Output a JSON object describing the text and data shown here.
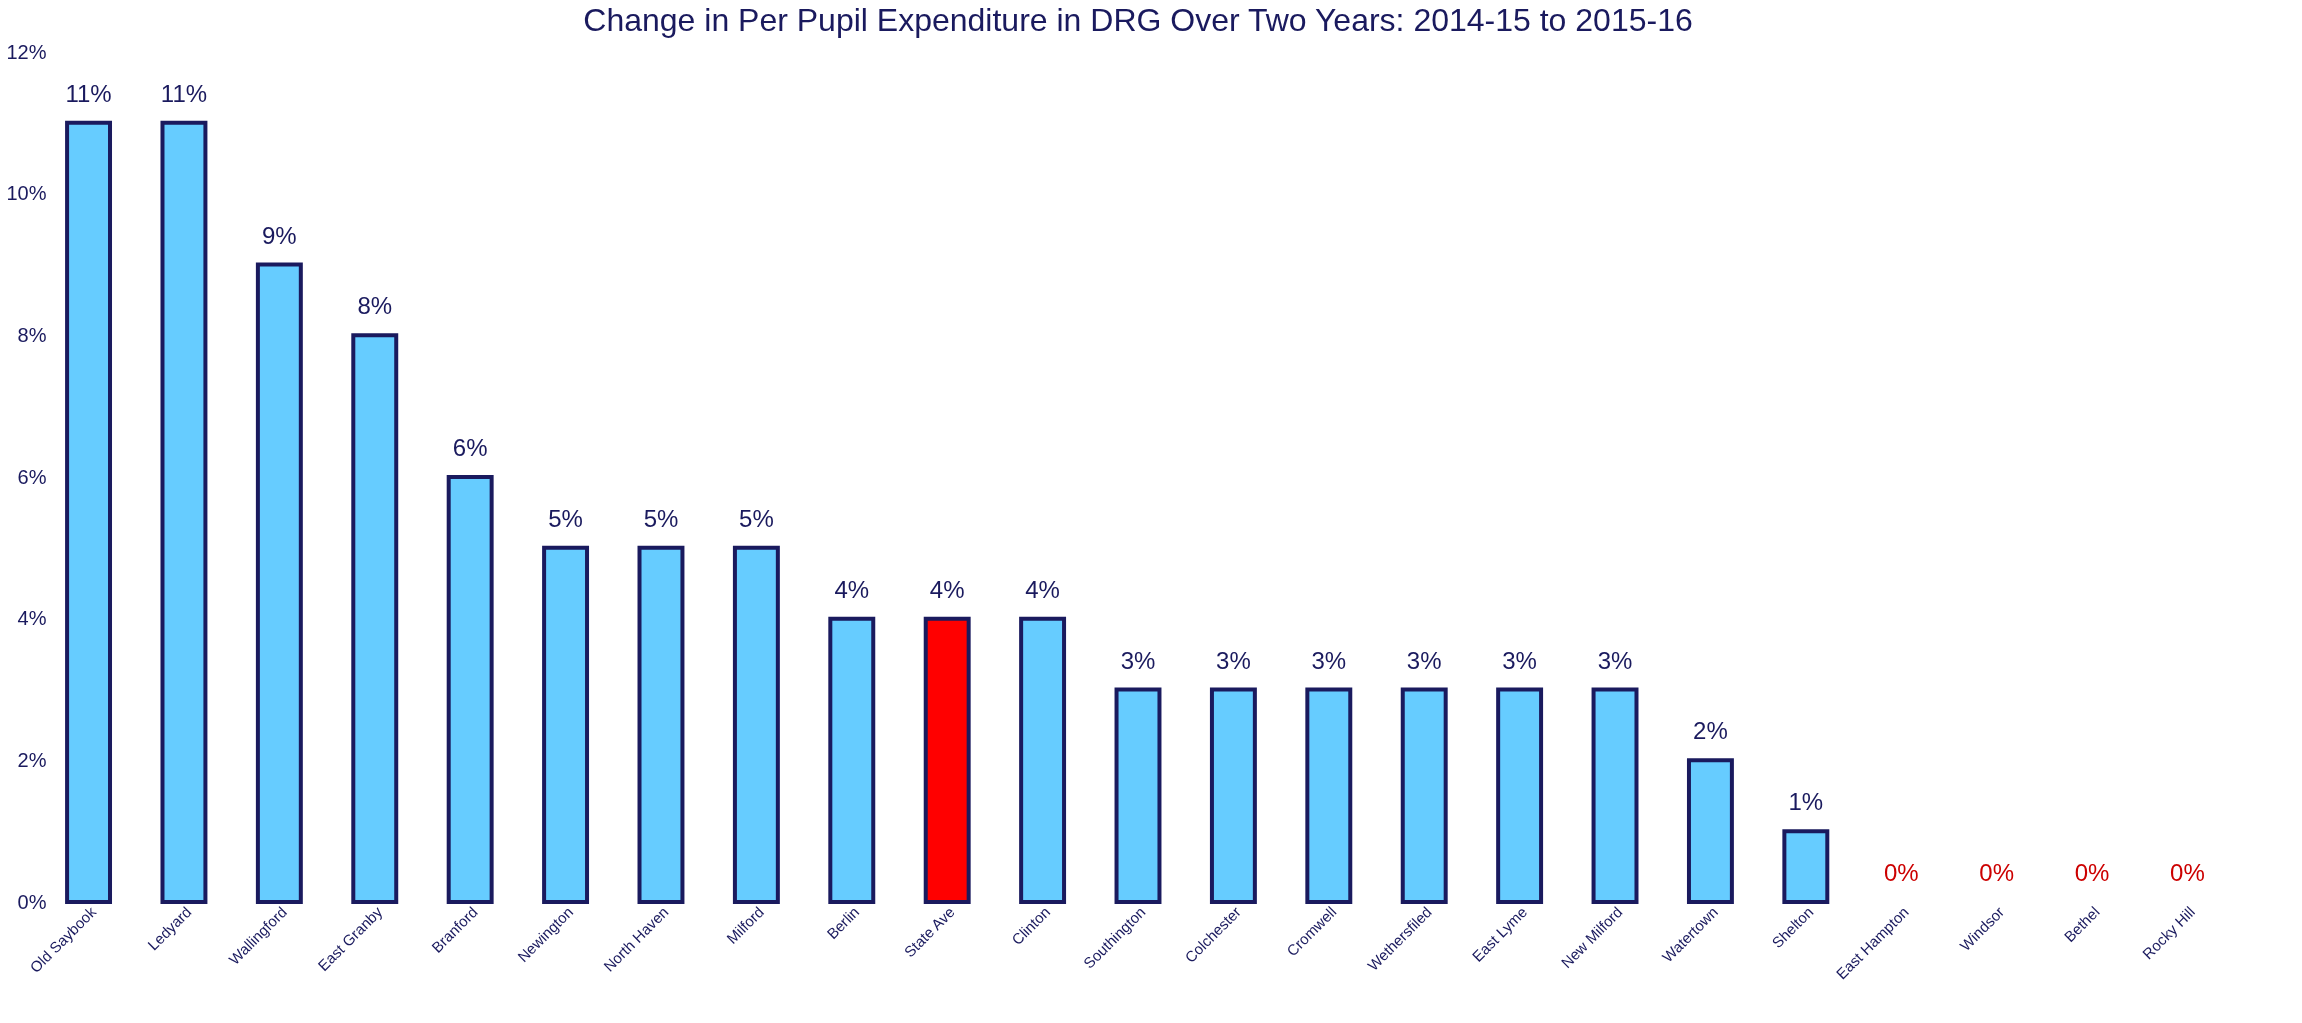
{
  "chart_data": {
    "type": "bar",
    "title": "Change in Per Pupil Expenditure in DRG Over Two Years:  2014-15 to 2015-16",
    "categories": [
      "Old Saybook",
      "Ledyard",
      "Wallingford",
      "East Granby",
      "Branford",
      "Newington",
      "North Haven",
      "Milford",
      "Berlin",
      "State Ave",
      "Clinton",
      "Southington",
      "Colchester",
      "Cromwell",
      "Wethersfiled",
      "East Lyme",
      "New Milford",
      "Watertown",
      "Shelton",
      "East Hampton",
      "Windsor",
      "Bethel",
      "Rocky Hill"
    ],
    "values": [
      11,
      11,
      9,
      8,
      6,
      5,
      5,
      5,
      4,
      4,
      4,
      3,
      3,
      3,
      3,
      3,
      3,
      2,
      1,
      0,
      0,
      0,
      0
    ],
    "colors": [
      "#66ccff",
      "#66ccff",
      "#66ccff",
      "#66ccff",
      "#66ccff",
      "#66ccff",
      "#66ccff",
      "#66ccff",
      "#66ccff",
      "#ff0000",
      "#66ccff",
      "#66ccff",
      "#66ccff",
      "#66ccff",
      "#66ccff",
      "#66ccff",
      "#66ccff",
      "#66ccff",
      "#66ccff",
      "#66ccff",
      "#66ccff",
      "#66ccff",
      "#66ccff"
    ],
    "value_labels": [
      "11%",
      "11%",
      "9%",
      "8%",
      "6%",
      "5%",
      "5%",
      "5%",
      "4%",
      "4%",
      "4%",
      "3%",
      "3%",
      "3%",
      "3%",
      "3%",
      "3%",
      "2%",
      "1%",
      "0%",
      "0%",
      "0%",
      "0%"
    ],
    "ylim": [
      0,
      12
    ],
    "yticks": [
      {
        "value": 0,
        "label": "0%"
      },
      {
        "value": 2,
        "label": "2%"
      },
      {
        "value": 4,
        "label": "4%"
      },
      {
        "value": 6,
        "label": "6%"
      },
      {
        "value": 8,
        "label": "8%"
      },
      {
        "value": 10,
        "label": "10%"
      },
      {
        "value": 12,
        "label": "12%"
      }
    ],
    "grid": false
  }
}
